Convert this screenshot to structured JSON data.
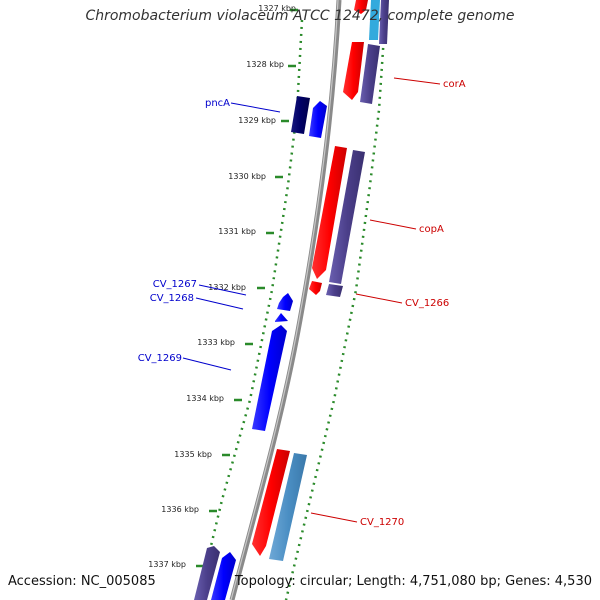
{
  "header": {
    "title": "Chromobacterium violaceum ATCC 12472, complete genome"
  },
  "footer": {
    "accession": "Accession: NC_005085",
    "summary": "Topology: circular; Length: 4,751,080 bp; Genes: 4,530"
  },
  "axis": {
    "ticks": [
      "1327 kbp",
      "1328 kbp",
      "1329 kbp",
      "1330 kbp",
      "1331 kbp",
      "1332 kbp",
      "1333 kbp",
      "1334 kbp",
      "1335 kbp",
      "1336 kbp",
      "1337 kbp"
    ]
  },
  "colors": {
    "backbone": "#8a8a8a",
    "dots": "#2a8a2a",
    "forward_gene": "#ff0000",
    "forward_cds": "#4b3f8a",
    "reverse_gene": "#0000ff",
    "reverse_cds": "#000066",
    "rna": "#4b8fc4",
    "reverse_label": "#0000cc",
    "forward_label": "#cc0000"
  },
  "labels": {
    "left": [
      {
        "text": "pncA"
      },
      {
        "text": "CV_1267"
      },
      {
        "text": "CV_1268"
      },
      {
        "text": "CV_1269"
      }
    ],
    "right": [
      {
        "text": "corA"
      },
      {
        "text": "copA"
      },
      {
        "text": "CV_1266"
      },
      {
        "text": "CV_1270"
      }
    ]
  }
}
